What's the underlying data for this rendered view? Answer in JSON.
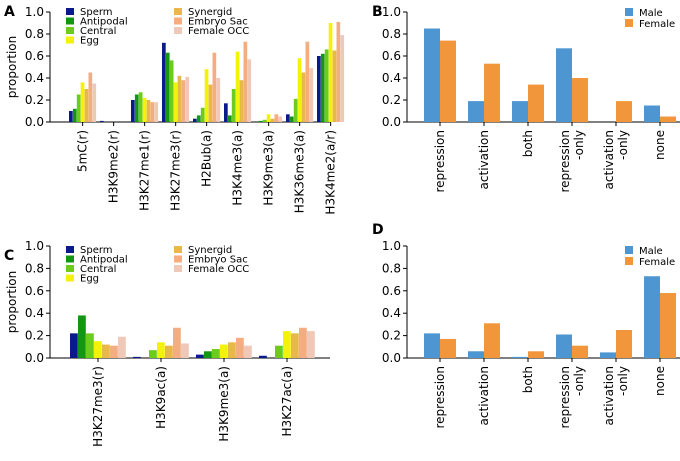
{
  "chart_data": [
    {
      "panel": "A",
      "type": "bar",
      "ylabel": "proportion",
      "ylim": [
        0,
        1.0
      ],
      "yticks": [
        "0.0",
        "0.2",
        "0.4",
        "0.6",
        "0.8",
        "1.0"
      ],
      "categories": [
        "5mC(r)",
        "H3K9me2(r)",
        "H3K27me1(r)",
        "H3K27me3(r)",
        "H2Bub(a)",
        "H3K4me3(a)",
        "H3K9me3(a)",
        "H3K36me3(a)",
        "H3K4me2(a/r)"
      ],
      "series": [
        {
          "name": "Sperm",
          "color": "#0a1a8c",
          "values": [
            0.1,
            0.01,
            0.2,
            0.72,
            0.03,
            0.17,
            0.0,
            0.07,
            0.6
          ]
        },
        {
          "name": "Antipodal",
          "color": "#149614",
          "values": [
            0.12,
            0.0,
            0.25,
            0.63,
            0.06,
            0.06,
            0.01,
            0.05,
            0.62
          ]
        },
        {
          "name": "Central",
          "color": "#6ccc1e",
          "values": [
            0.25,
            0.0,
            0.27,
            0.56,
            0.13,
            0.3,
            0.02,
            0.21,
            0.66
          ]
        },
        {
          "name": "Egg",
          "color": "#f2f20a",
          "values": [
            0.36,
            0.0,
            0.22,
            0.36,
            0.48,
            0.64,
            0.07,
            0.58,
            0.9
          ]
        },
        {
          "name": "Synergid",
          "color": "#e8b84a",
          "values": [
            0.3,
            0.0,
            0.2,
            0.42,
            0.34,
            0.38,
            0.03,
            0.45,
            0.65
          ]
        },
        {
          "name": "Embryo Sac",
          "color": "#f4ad80",
          "values": [
            0.45,
            0.0,
            0.18,
            0.38,
            0.63,
            0.73,
            0.07,
            0.73,
            0.91
          ]
        },
        {
          "name": "Female OCC",
          "color": "#f0c8b8",
          "values": [
            0.35,
            0.0,
            0.18,
            0.41,
            0.4,
            0.57,
            0.05,
            0.49,
            0.79
          ]
        }
      ]
    },
    {
      "panel": "B",
      "type": "bar",
      "ylabel": "",
      "ylim": [
        0,
        1.0
      ],
      "yticks": [
        "0.0",
        "0.2",
        "0.4",
        "0.6",
        "0.8",
        "1.0"
      ],
      "categories": [
        "repression",
        "activation",
        "both",
        "repression\n-only",
        "activation\n-only",
        "none"
      ],
      "series": [
        {
          "name": "Male",
          "color": "#4e96d2",
          "values": [
            0.85,
            0.19,
            0.19,
            0.67,
            0.0,
            0.15
          ]
        },
        {
          "name": "Female",
          "color": "#f2963c",
          "values": [
            0.74,
            0.53,
            0.34,
            0.4,
            0.19,
            0.05
          ]
        }
      ]
    },
    {
      "panel": "C",
      "type": "bar",
      "ylabel": "proportion",
      "ylim": [
        0,
        1.0
      ],
      "yticks": [
        "0.0",
        "0.2",
        "0.4",
        "0.6",
        "0.8",
        "1.0"
      ],
      "categories": [
        "H3K27me3(r)",
        "H3K9ac(a)",
        "H3K9me3(a)",
        "H3K27ac(a)"
      ],
      "series": [
        {
          "name": "Sperm",
          "color": "#0a1a8c",
          "values": [
            0.22,
            0.01,
            0.03,
            0.02
          ]
        },
        {
          "name": "Antipodal",
          "color": "#149614",
          "values": [
            0.38,
            0.0,
            0.06,
            0.0
          ]
        },
        {
          "name": "Central",
          "color": "#6ccc1e",
          "values": [
            0.22,
            0.07,
            0.08,
            0.11
          ]
        },
        {
          "name": "Egg",
          "color": "#f2f20a",
          "values": [
            0.15,
            0.14,
            0.12,
            0.24
          ]
        },
        {
          "name": "Synergid",
          "color": "#e8b84a",
          "values": [
            0.12,
            0.11,
            0.14,
            0.22
          ]
        },
        {
          "name": "Embryo Sac",
          "color": "#f4ad80",
          "values": [
            0.11,
            0.27,
            0.18,
            0.27
          ]
        },
        {
          "name": "Female OCC",
          "color": "#f0c8b8",
          "values": [
            0.19,
            0.13,
            0.11,
            0.24
          ]
        }
      ]
    },
    {
      "panel": "D",
      "type": "bar",
      "ylabel": "",
      "ylim": [
        0,
        1.0
      ],
      "yticks": [
        "0.0",
        "0.2",
        "0.4",
        "0.6",
        "0.8",
        "1.0"
      ],
      "categories": [
        "repression",
        "activation",
        "both",
        "repression\n-only",
        "activation\n-only",
        "none"
      ],
      "series": [
        {
          "name": "Male",
          "color": "#4e96d2",
          "values": [
            0.22,
            0.06,
            0.01,
            0.21,
            0.05,
            0.73
          ]
        },
        {
          "name": "Female",
          "color": "#f2963c",
          "values": [
            0.17,
            0.31,
            0.06,
            0.11,
            0.25,
            0.58
          ]
        }
      ]
    }
  ]
}
